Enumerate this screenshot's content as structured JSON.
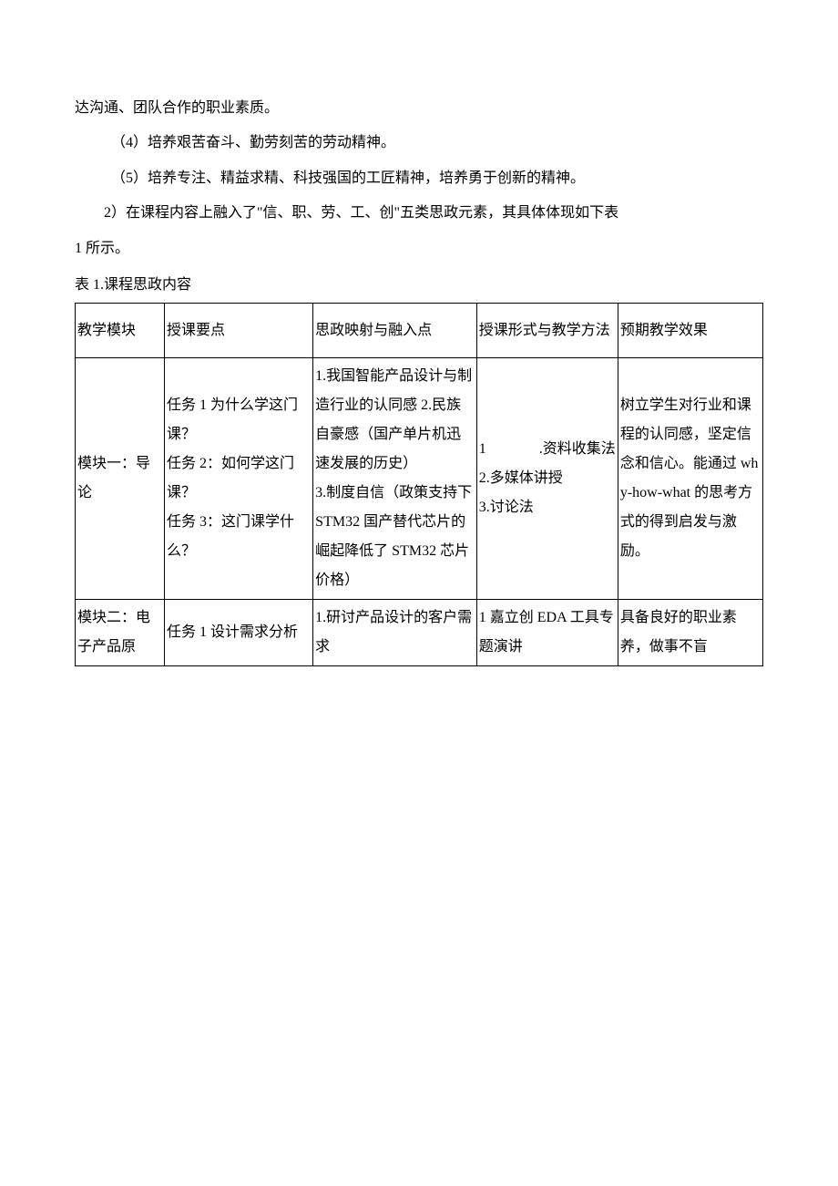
{
  "text": {
    "line1": "达沟通、团队合作的职业素质。",
    "line2": "（4）培养艰苦奋斗、勤劳刻苦的劳动精神。",
    "line3": "（5）培养专注、精益求精、科技强国的工匠精神，培养勇于创新的精神。",
    "line4": "2）在课程内容上融入了\"信、职、劳、工、创\"五类思政元素，其具体体现如下表",
    "line5": "1 所示。",
    "caption": "表 1.课程思政内容"
  },
  "table": {
    "header": {
      "col1": "教学模块",
      "col2": "授课要点",
      "col3": "思政映射与融入点",
      "col4": "授课形式与教学方法",
      "col5": "预期教学效果"
    },
    "row1": {
      "col1": "模块一：导论",
      "col2": "任务 1 为什么学这门课？\n任务 2：如何学这门课？\n任务 3：这门课学什么？",
      "col3": "1.我国智能产品设计与制造行业的认同感 2.民族自豪感（国产单片机迅速发展的历史）\n3.制度自信（政策支持下 STM32 国产替代芯片的崛起降低了 STM32 芯片价格）",
      "col4_1": "1",
      "col4_1b": ".资料收集法",
      "col4_2": "2.多媒体讲授",
      "col4_3": "3.讨论法",
      "col5": "树立学生对行业和课程的认同感，坚定信念和信心。能通过 why-how-what 的思考方式的得到启发与激励。"
    },
    "row2": {
      "col1": "模块二：电子产品原",
      "col2": "任务 1 设计需求分析",
      "col3": "1.研讨产品设计的客户需求",
      "col4": "1 嘉立创 EDA 工具专题演讲",
      "col5": "具备良好的职业素养，做事不盲"
    }
  }
}
